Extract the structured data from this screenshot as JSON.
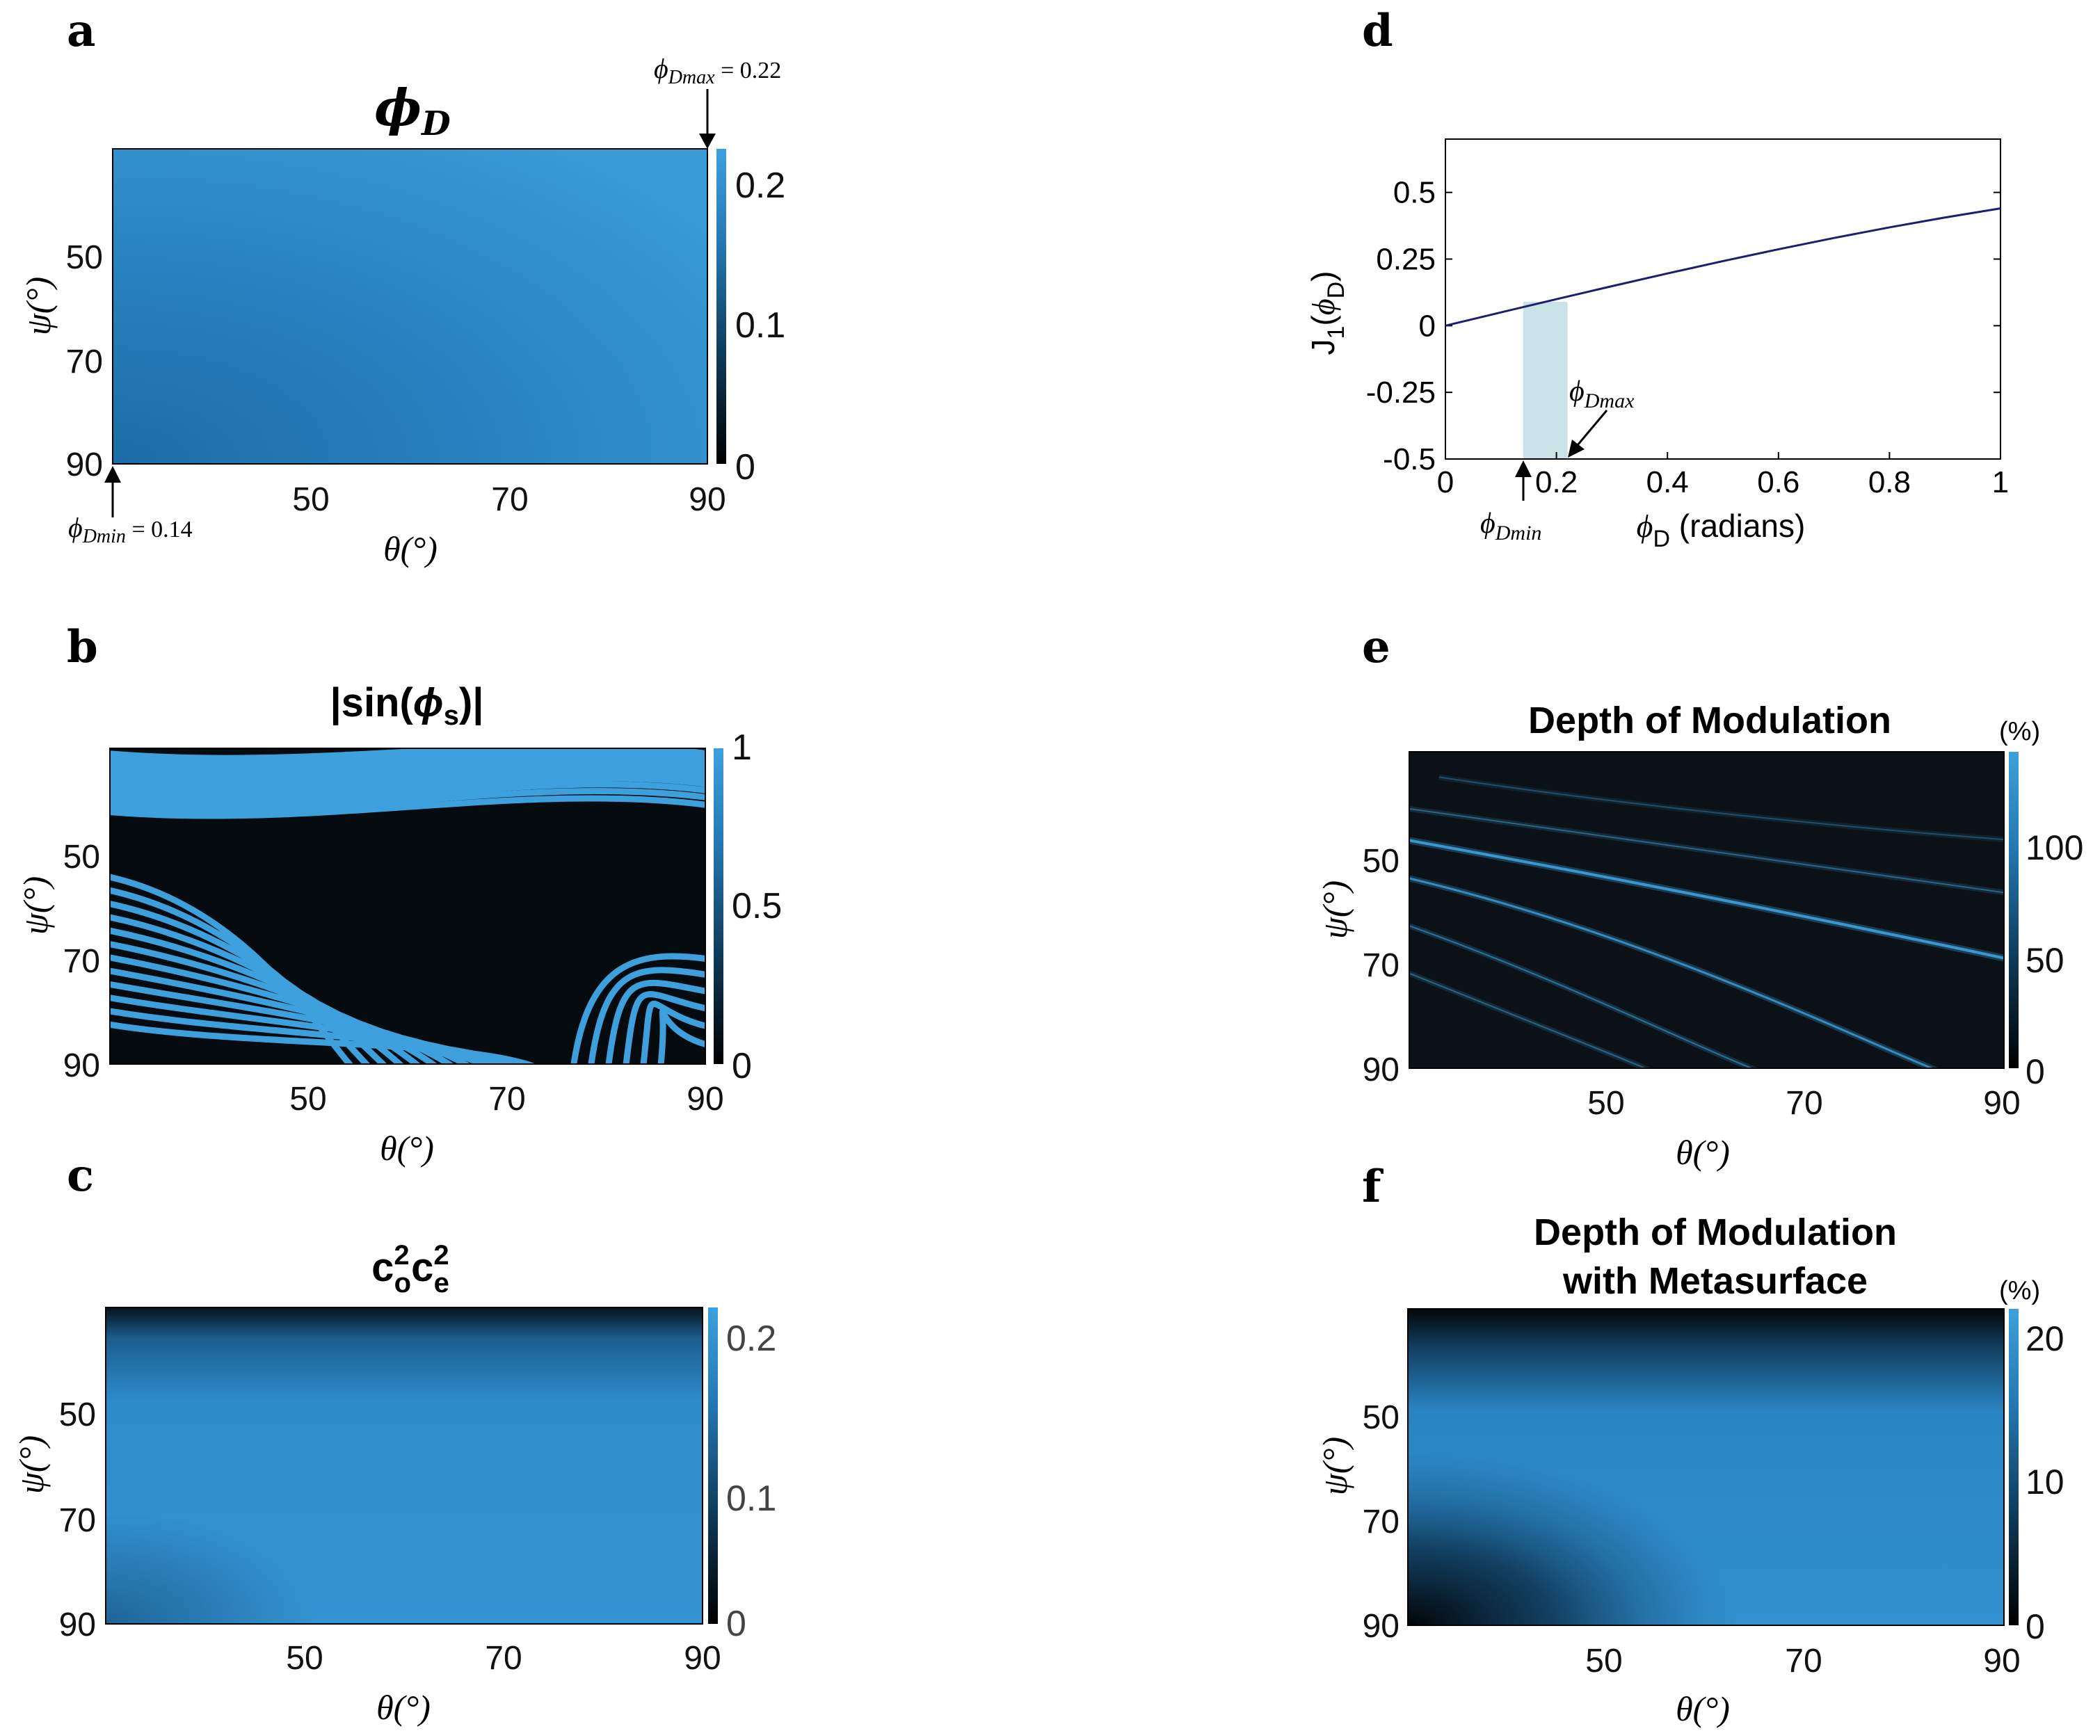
{
  "colors": {
    "high": "#3da0dc",
    "mid": "#1f6fa6",
    "low": "#000000",
    "band": "#c9e2e8",
    "line": "#1e1e6e"
  },
  "chart_data": [
    {
      "panel": "a",
      "type": "heatmap",
      "title": "ϕ_D",
      "xlabel": "θ(°)",
      "ylabel": "ψ(°)",
      "xlim": [
        30,
        90
      ],
      "ylim": [
        30,
        90
      ],
      "y_reversed": true,
      "xticks": [
        50,
        70,
        90
      ],
      "yticks": [
        50,
        70,
        90
      ],
      "colorbar": {
        "range": [
          0,
          0.22
        ],
        "ticks": [
          "0",
          "0.1",
          "0.2"
        ]
      },
      "annotations": [
        {
          "text": "ϕ",
          "sub": "Dmax",
          "value": "= 0.22",
          "points_to": "top-right corner"
        },
        {
          "text": "ϕ",
          "sub": "Dmin",
          "value": "= 0.14",
          "points_to": "bottom-left corner"
        }
      ],
      "min": 0.14,
      "max": 0.22
    },
    {
      "panel": "b",
      "type": "heatmap",
      "title": "|sin(ϕ_s)|",
      "xlabel": "θ(°)",
      "ylabel": "ψ(°)",
      "xlim": [
        30,
        90
      ],
      "ylim": [
        30,
        90
      ],
      "y_reversed": true,
      "xticks": [
        50,
        70,
        90
      ],
      "yticks": [
        50,
        70,
        90
      ],
      "colorbar": {
        "range": [
          0,
          1
        ],
        "ticks": [
          "0",
          "0.5",
          "1"
        ]
      },
      "pattern": "dense oscillating fringes, about 32 bands"
    },
    {
      "panel": "c",
      "type": "heatmap",
      "title": "c_o² c_e²",
      "xlabel": "θ(°)",
      "ylabel": "ψ(°)",
      "xlim": [
        30,
        90
      ],
      "ylim": [
        30,
        90
      ],
      "y_reversed": true,
      "xticks": [
        50,
        70,
        90
      ],
      "yticks": [
        50,
        70,
        90
      ],
      "colorbar": {
        "range": [
          0,
          0.25
        ],
        "ticks": [
          "0",
          "0.1",
          "0.2"
        ]
      },
      "pattern": "dark near ψ = 30, bright elsewhere"
    },
    {
      "panel": "d",
      "type": "line",
      "xlabel": "ϕ_D (radians)",
      "ylabel": "J_1(ϕ_D)",
      "xlim": [
        0,
        1
      ],
      "ylim": [
        -0.5,
        0.7
      ],
      "xticks": [
        "0",
        "0.2",
        "0.4",
        "0.6",
        "0.8",
        "1"
      ],
      "yticks": [
        "-0.5",
        "-0.25",
        "0",
        "0.25",
        "0.5"
      ],
      "series": [
        {
          "x": [
            0,
            0.1,
            0.2,
            0.3,
            0.4,
            0.5,
            0.6,
            0.7,
            0.8,
            0.9,
            1.0
          ],
          "y": [
            0,
            0.05,
            0.0995,
            0.1483,
            0.196,
            0.2423,
            0.2867,
            0.329,
            0.3688,
            0.4059,
            0.44
          ]
        }
      ],
      "shaded_band": {
        "x": [
          0.14,
          0.22
        ]
      },
      "annotations": [
        {
          "text": "ϕ",
          "sub": "Dmax"
        },
        {
          "text": "ϕ",
          "sub": "Dmin"
        }
      ]
    },
    {
      "panel": "e",
      "type": "heatmap",
      "title": "Depth of Modulation",
      "xlabel": "θ(°)",
      "ylabel": "ψ(°)",
      "xlim": [
        30,
        90
      ],
      "ylim": [
        30,
        90
      ],
      "y_reversed": true,
      "xticks": [
        50,
        70,
        90
      ],
      "yticks": [
        50,
        70,
        90
      ],
      "colorbar": {
        "range": [
          0,
          140
        ],
        "ticks": [
          "0",
          "50",
          "100"
        ],
        "unit": "(%)"
      },
      "pattern": "dark background with thin bright curved streaks"
    },
    {
      "panel": "f",
      "type": "heatmap",
      "title": "Depth of Modulation",
      "title2": "with Metasurface",
      "xlabel": "θ(°)",
      "ylabel": "ψ(°)",
      "xlim": [
        30,
        90
      ],
      "ylim": [
        30,
        90
      ],
      "y_reversed": true,
      "xticks": [
        50,
        70,
        90
      ],
      "yticks": [
        50,
        70,
        90
      ],
      "colorbar": {
        "range": [
          0,
          21
        ],
        "ticks": [
          "0",
          "10",
          "20"
        ],
        "unit": "(%)"
      },
      "pattern": "dark at top edge and lower-left, bright elsewhere"
    }
  ]
}
